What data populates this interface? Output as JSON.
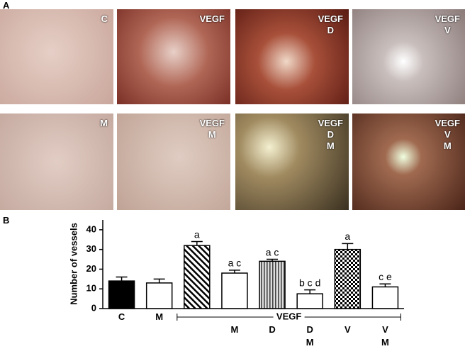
{
  "panel_a": {
    "label": "A",
    "images": [
      {
        "label": "C"
      },
      {
        "label": "VEGF"
      },
      {
        "label": "VEGF\nD"
      },
      {
        "label": "VEGF\nV"
      },
      {
        "label": "M"
      },
      {
        "label": "VEGF\nM"
      },
      {
        "label": "VEGF\nD\nM"
      },
      {
        "label": "VEGF\nV\nM"
      }
    ]
  },
  "panel_b_label": "B",
  "chart_data": {
    "type": "bar",
    "y_label": "Number of vessels",
    "categories": [
      "C",
      "M",
      null,
      "M",
      "D",
      "D\nM",
      "V",
      "V\nM"
    ],
    "values": [
      14,
      13,
      32,
      18,
      24,
      7.5,
      30,
      11
    ],
    "errors": [
      2,
      2,
      2,
      1.5,
      1,
      2,
      3,
      1.5
    ],
    "annotations": [
      null,
      null,
      "a",
      "a c",
      "a c",
      "b c d",
      "a",
      "c e"
    ],
    "patterns": [
      "black",
      "white",
      "hatch",
      "white",
      "stripes",
      "white",
      "checker",
      "white"
    ],
    "group": {
      "label": "VEGF",
      "first": 2,
      "last": 7
    },
    "ylim": [
      0,
      45
    ],
    "yticks": [
      0,
      10,
      20,
      30,
      40
    ]
  }
}
